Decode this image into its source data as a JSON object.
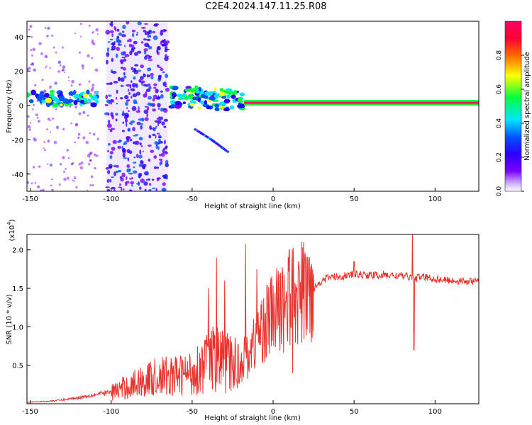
{
  "page": {
    "title": "C2E4.2024.147.11.25.R08"
  },
  "colors": {
    "background": "#ffffff",
    "snr_line": "#e8322d",
    "colormap": [
      "#ffffff",
      "#7b00ff",
      "#2a00ff",
      "#0055ff",
      "#00e5ff",
      "#00ff40",
      "#ffff00",
      "#ff6600",
      "#ff0033",
      "#ff0066"
    ]
  },
  "chart_data": [
    {
      "type": "heatmap",
      "title": "C2E4.2024.147.11.25.R08",
      "xlabel": "Height of straight line (km)",
      "ylabel": "Frequency (Hz)",
      "xlim": [
        -152,
        127
      ],
      "ylim": [
        -50,
        49
      ],
      "xticks": [
        -150,
        -100,
        -50,
        0,
        50,
        100
      ],
      "yticks": [
        -40,
        -20,
        0,
        20,
        40
      ],
      "colorbar": {
        "label": "Normalized spectral amplitude",
        "range": [
          0,
          1
        ],
        "ticks": [
          0.0,
          0.2,
          0.4,
          0.6,
          0.8
        ]
      },
      "features": [
        {
          "description": "noise",
          "x_range": [
            -152,
            -108
          ],
          "frequency": 4,
          "amplitude": 0.45
        },
        {
          "description": "dense noise band",
          "x_range": [
            -103,
            -65
          ],
          "amplitude": 0.25
        },
        {
          "description": "scattered echoes",
          "x_range": [
            -64,
            -18
          ],
          "frequency": 4,
          "amplitude": 0.5
        },
        {
          "description": "descending branch",
          "points": [
            [
              -48,
              -14
            ],
            [
              -38,
              -20
            ],
            [
              -28,
              -27
            ]
          ],
          "amplitude": 0.3
        },
        {
          "description": "carrier line",
          "x_range": [
            -18,
            127
          ],
          "frequency": 1.5,
          "amplitude": 0.95
        }
      ]
    },
    {
      "type": "line",
      "xlabel": "Height of straight line (km)",
      "ylabel": "SNR (10 * v/v)",
      "y_scale_label": "(x10",
      "y_scale_exponent": "4",
      "xlim": [
        -152,
        127
      ],
      "ylim": [
        0,
        22000
      ],
      "xticks": [
        -150,
        -100,
        -50,
        0,
        50,
        100
      ],
      "yticks": [
        5000,
        10000,
        15000,
        20000
      ],
      "ytick_labels": [
        "0.5",
        "1.0",
        "1.5",
        "2.0"
      ],
      "series": [
        {
          "x": [
            -152,
            -140,
            -130,
            -120,
            -110,
            -100,
            -90,
            -80,
            -70,
            -60,
            -50,
            -40,
            -35,
            -30,
            -25,
            -20,
            -15,
            -10,
            -5,
            0,
            5,
            10,
            15,
            20,
            25,
            30,
            35,
            40,
            50,
            60,
            70,
            80,
            85,
            88,
            90,
            95,
            100,
            110,
            120,
            127
          ],
          "y": [
            200,
            300,
            500,
            800,
            1200,
            1500,
            2200,
            3000,
            3500,
            3600,
            4000,
            5500,
            6000,
            5500,
            5000,
            5500,
            6500,
            8500,
            10500,
            11500,
            12500,
            13500,
            14000,
            14500,
            15000,
            16000,
            16500,
            16500,
            16800,
            16700,
            16700,
            16600,
            16500,
            16200,
            16500,
            16400,
            16200,
            16000,
            15900,
            16000
          ],
          "spikes": [
            [
              -40,
              15000
            ],
            [
              -35,
              19000
            ],
            [
              -30,
              16000
            ],
            [
              -17,
              20800
            ],
            [
              -10,
              17500
            ],
            [
              10,
              20000
            ],
            [
              12,
              4000
            ],
            [
              50,
              18500
            ],
            [
              86,
              22000
            ],
            [
              87,
              7000
            ]
          ]
        }
      ]
    }
  ]
}
